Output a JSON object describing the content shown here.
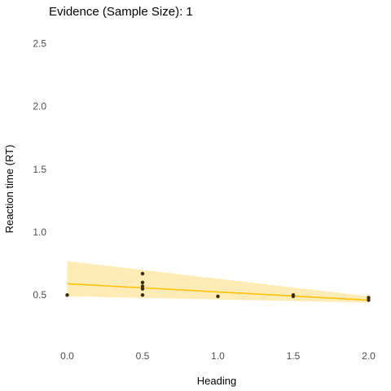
{
  "chart_data": {
    "type": "scatter",
    "title": "Evidence (Sample Size): 1",
    "xlabel": "Heading",
    "ylabel": "Reaction time (RT)",
    "xlim": [
      -0.1,
      2.1
    ],
    "ylim": [
      0.1,
      2.6
    ],
    "x_ticks": [
      "0.0",
      "0.5",
      "1.0",
      "1.5",
      "2.0"
    ],
    "y_ticks": [
      "0.5",
      "1.0",
      "1.5",
      "2.0",
      "2.5"
    ],
    "grid": false,
    "points": [
      {
        "x": 0.0,
        "y": 0.5
      },
      {
        "x": 0.5,
        "y": 0.67
      },
      {
        "x": 0.5,
        "y": 0.6
      },
      {
        "x": 0.5,
        "y": 0.57
      },
      {
        "x": 0.5,
        "y": 0.55
      },
      {
        "x": 0.5,
        "y": 0.5
      },
      {
        "x": 1.0,
        "y": 0.49
      },
      {
        "x": 1.5,
        "y": 0.5
      },
      {
        "x": 1.5,
        "y": 0.49
      },
      {
        "x": 2.0,
        "y": 0.48
      },
      {
        "x": 2.0,
        "y": 0.46
      }
    ],
    "trend_line": {
      "x": [
        0.0,
        2.0
      ],
      "y": [
        0.59,
        0.46
      ]
    },
    "confidence_band": {
      "x": [
        0.0,
        2.0
      ],
      "lower": [
        0.49,
        0.44
      ],
      "upper": [
        0.77,
        0.49
      ]
    },
    "colors": {
      "line": "#FFC20A",
      "band": "#FFE8A8",
      "points": "#3D2B00",
      "text": "#4d4d4d"
    }
  }
}
